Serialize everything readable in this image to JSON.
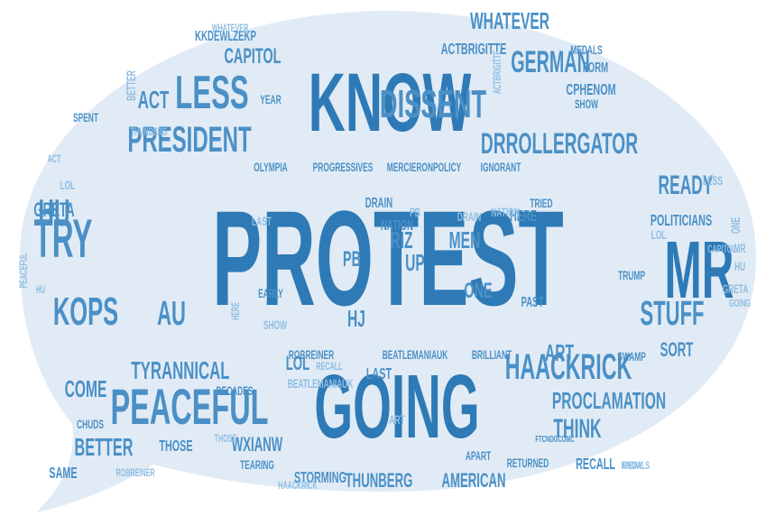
{
  "colors": {
    "bubble": "#e1ebf5",
    "dark": "#2e7ab6",
    "mid": "#4a90c6",
    "light": "#8dbde3"
  },
  "shape": "speech-bubble",
  "words": [
    {
      "text": "PROTEST",
      "tone": "dark"
    },
    {
      "text": "KNOW",
      "tone": "dark"
    },
    {
      "text": "GOING",
      "tone": "dark"
    },
    {
      "text": "MR",
      "tone": "dark"
    },
    {
      "text": "DISSENT",
      "tone": "mid"
    },
    {
      "text": "LESS",
      "tone": "mid"
    },
    {
      "text": "PRESIDENT",
      "tone": "mid"
    },
    {
      "text": "DRROLLERGATOR",
      "tone": "mid"
    },
    {
      "text": "PEACEFUL",
      "tone": "mid"
    },
    {
      "text": "HAACKRICK",
      "tone": "mid"
    },
    {
      "text": "TRY",
      "tone": "mid"
    },
    {
      "text": "KOPS",
      "tone": "mid"
    },
    {
      "text": "HU",
      "tone": "mid"
    },
    {
      "text": "AU",
      "tone": "mid"
    },
    {
      "text": "STUFF",
      "tone": "mid"
    },
    {
      "text": "GERMAN",
      "tone": "mid"
    },
    {
      "text": "WHATEVER",
      "tone": "mid"
    },
    {
      "text": "TYRANNICAL",
      "tone": "mid"
    },
    {
      "text": "PROCLAMATION",
      "tone": "mid"
    },
    {
      "text": "THINK",
      "tone": "mid"
    },
    {
      "text": "BETTER",
      "tone": "mid"
    },
    {
      "text": "READY",
      "tone": "mid"
    },
    {
      "text": "ACT",
      "tone": "mid"
    },
    {
      "text": "CAPITOL",
      "tone": "mid"
    },
    {
      "text": "RIZ",
      "tone": "mid"
    },
    {
      "text": "PB",
      "tone": "mid"
    },
    {
      "text": "ART",
      "tone": "mid"
    },
    {
      "text": "GRETA",
      "tone": "mid"
    },
    {
      "text": "LOL",
      "tone": "mid"
    },
    {
      "text": "UP",
      "tone": "mid"
    },
    {
      "text": "HJ",
      "tone": "mid"
    },
    {
      "text": "ONE",
      "tone": "mid"
    },
    {
      "text": "MEN",
      "tone": "mid"
    },
    {
      "text": "SORT",
      "tone": "mid"
    },
    {
      "text": "COME",
      "tone": "mid"
    },
    {
      "text": "THOSE",
      "tone": "mid"
    },
    {
      "text": "WXIANW",
      "tone": "mid"
    },
    {
      "text": "THUNBERG",
      "tone": "mid"
    },
    {
      "text": "AMERICAN",
      "tone": "mid"
    },
    {
      "text": "RECALL",
      "tone": "mid"
    },
    {
      "text": "SAME",
      "tone": "mid"
    },
    {
      "text": "STORMING",
      "tone": "mid"
    },
    {
      "text": "TEARING",
      "tone": "mid"
    },
    {
      "text": "CHUDS",
      "tone": "mid"
    },
    {
      "text": "DECADES",
      "tone": "mid"
    },
    {
      "text": "KKDEWLZEKP",
      "tone": "mid"
    },
    {
      "text": "ACTBRIGITTE",
      "tone": "mid"
    },
    {
      "text": "CPHENOM",
      "tone": "mid"
    },
    {
      "text": "POLITICIANS",
      "tone": "mid"
    },
    {
      "text": "OLYMPIA",
      "tone": "mid"
    },
    {
      "text": "PROGRESSIVES",
      "tone": "mid"
    },
    {
      "text": "MERCIERONPOLICY",
      "tone": "mid"
    },
    {
      "text": "IGNORANT",
      "tone": "mid"
    },
    {
      "text": "ROBREINER",
      "tone": "mid"
    },
    {
      "text": "BEATLEMANIAUK",
      "tone": "mid"
    },
    {
      "text": "BRILLIANT",
      "tone": "mid"
    },
    {
      "text": "RETURNED",
      "tone": "mid"
    },
    {
      "text": "APART",
      "tone": "mid"
    },
    {
      "text": "LAST",
      "tone": "mid"
    },
    {
      "text": "HERE",
      "tone": "mid"
    },
    {
      "text": "DRAIN",
      "tone": "mid"
    },
    {
      "text": "NATION",
      "tone": "mid"
    },
    {
      "text": "PAST",
      "tone": "mid"
    },
    {
      "text": "MEDALS",
      "tone": "mid"
    },
    {
      "text": "YEAR",
      "tone": "mid"
    },
    {
      "text": "FORM",
      "tone": "mid"
    },
    {
      "text": "SHOW",
      "tone": "mid"
    },
    {
      "text": "EARLY",
      "tone": "mid"
    },
    {
      "text": "SPENT",
      "tone": "mid"
    },
    {
      "text": "SWAMP",
      "tone": "mid"
    },
    {
      "text": "TRIED",
      "tone": "mid"
    },
    {
      "text": "TRUMP",
      "tone": "mid"
    },
    {
      "text": "FTCNDGCOMC",
      "tone": "mid"
    }
  ]
}
